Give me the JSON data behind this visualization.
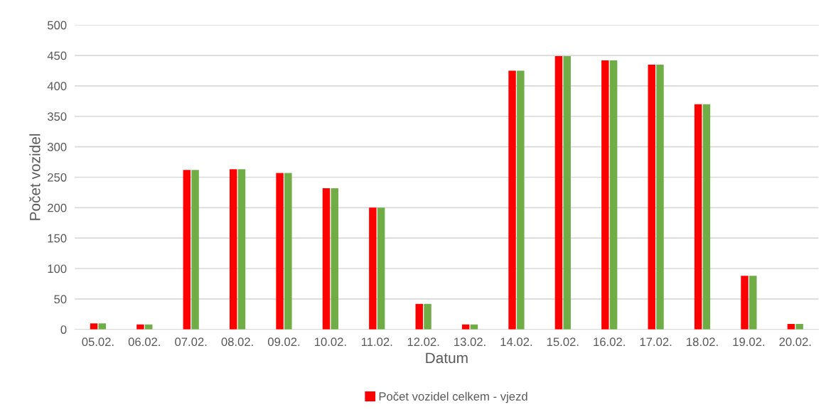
{
  "chart_data": {
    "type": "bar",
    "xlabel": "Datum",
    "ylabel": "Počet vozidel",
    "categories": [
      "05.02.",
      "06.02.",
      "07.02.",
      "08.02.",
      "09.02.",
      "10.02.",
      "11.02.",
      "12.02.",
      "13.02.",
      "14.02.",
      "15.02.",
      "16.02.",
      "17.02.",
      "18.02.",
      "19.02.",
      "20.02."
    ],
    "series": [
      {
        "name": "Počet vozidel celkem - vjezd",
        "color": "#ff0000",
        "values": [
          10,
          8,
          262,
          263,
          257,
          232,
          200,
          42,
          8,
          425,
          449,
          442,
          435,
          370,
          88,
          9
        ]
      },
      {
        "color": "#70ad47",
        "values": [
          10,
          8,
          262,
          263,
          257,
          232,
          200,
          42,
          8,
          425,
          449,
          442,
          435,
          370,
          88,
          9
        ]
      }
    ],
    "ylim": [
      0,
      500
    ],
    "yticks": [
      0,
      50,
      100,
      150,
      200,
      250,
      300,
      350,
      400,
      450,
      500
    ],
    "grid": "y",
    "legend": "bottom"
  }
}
